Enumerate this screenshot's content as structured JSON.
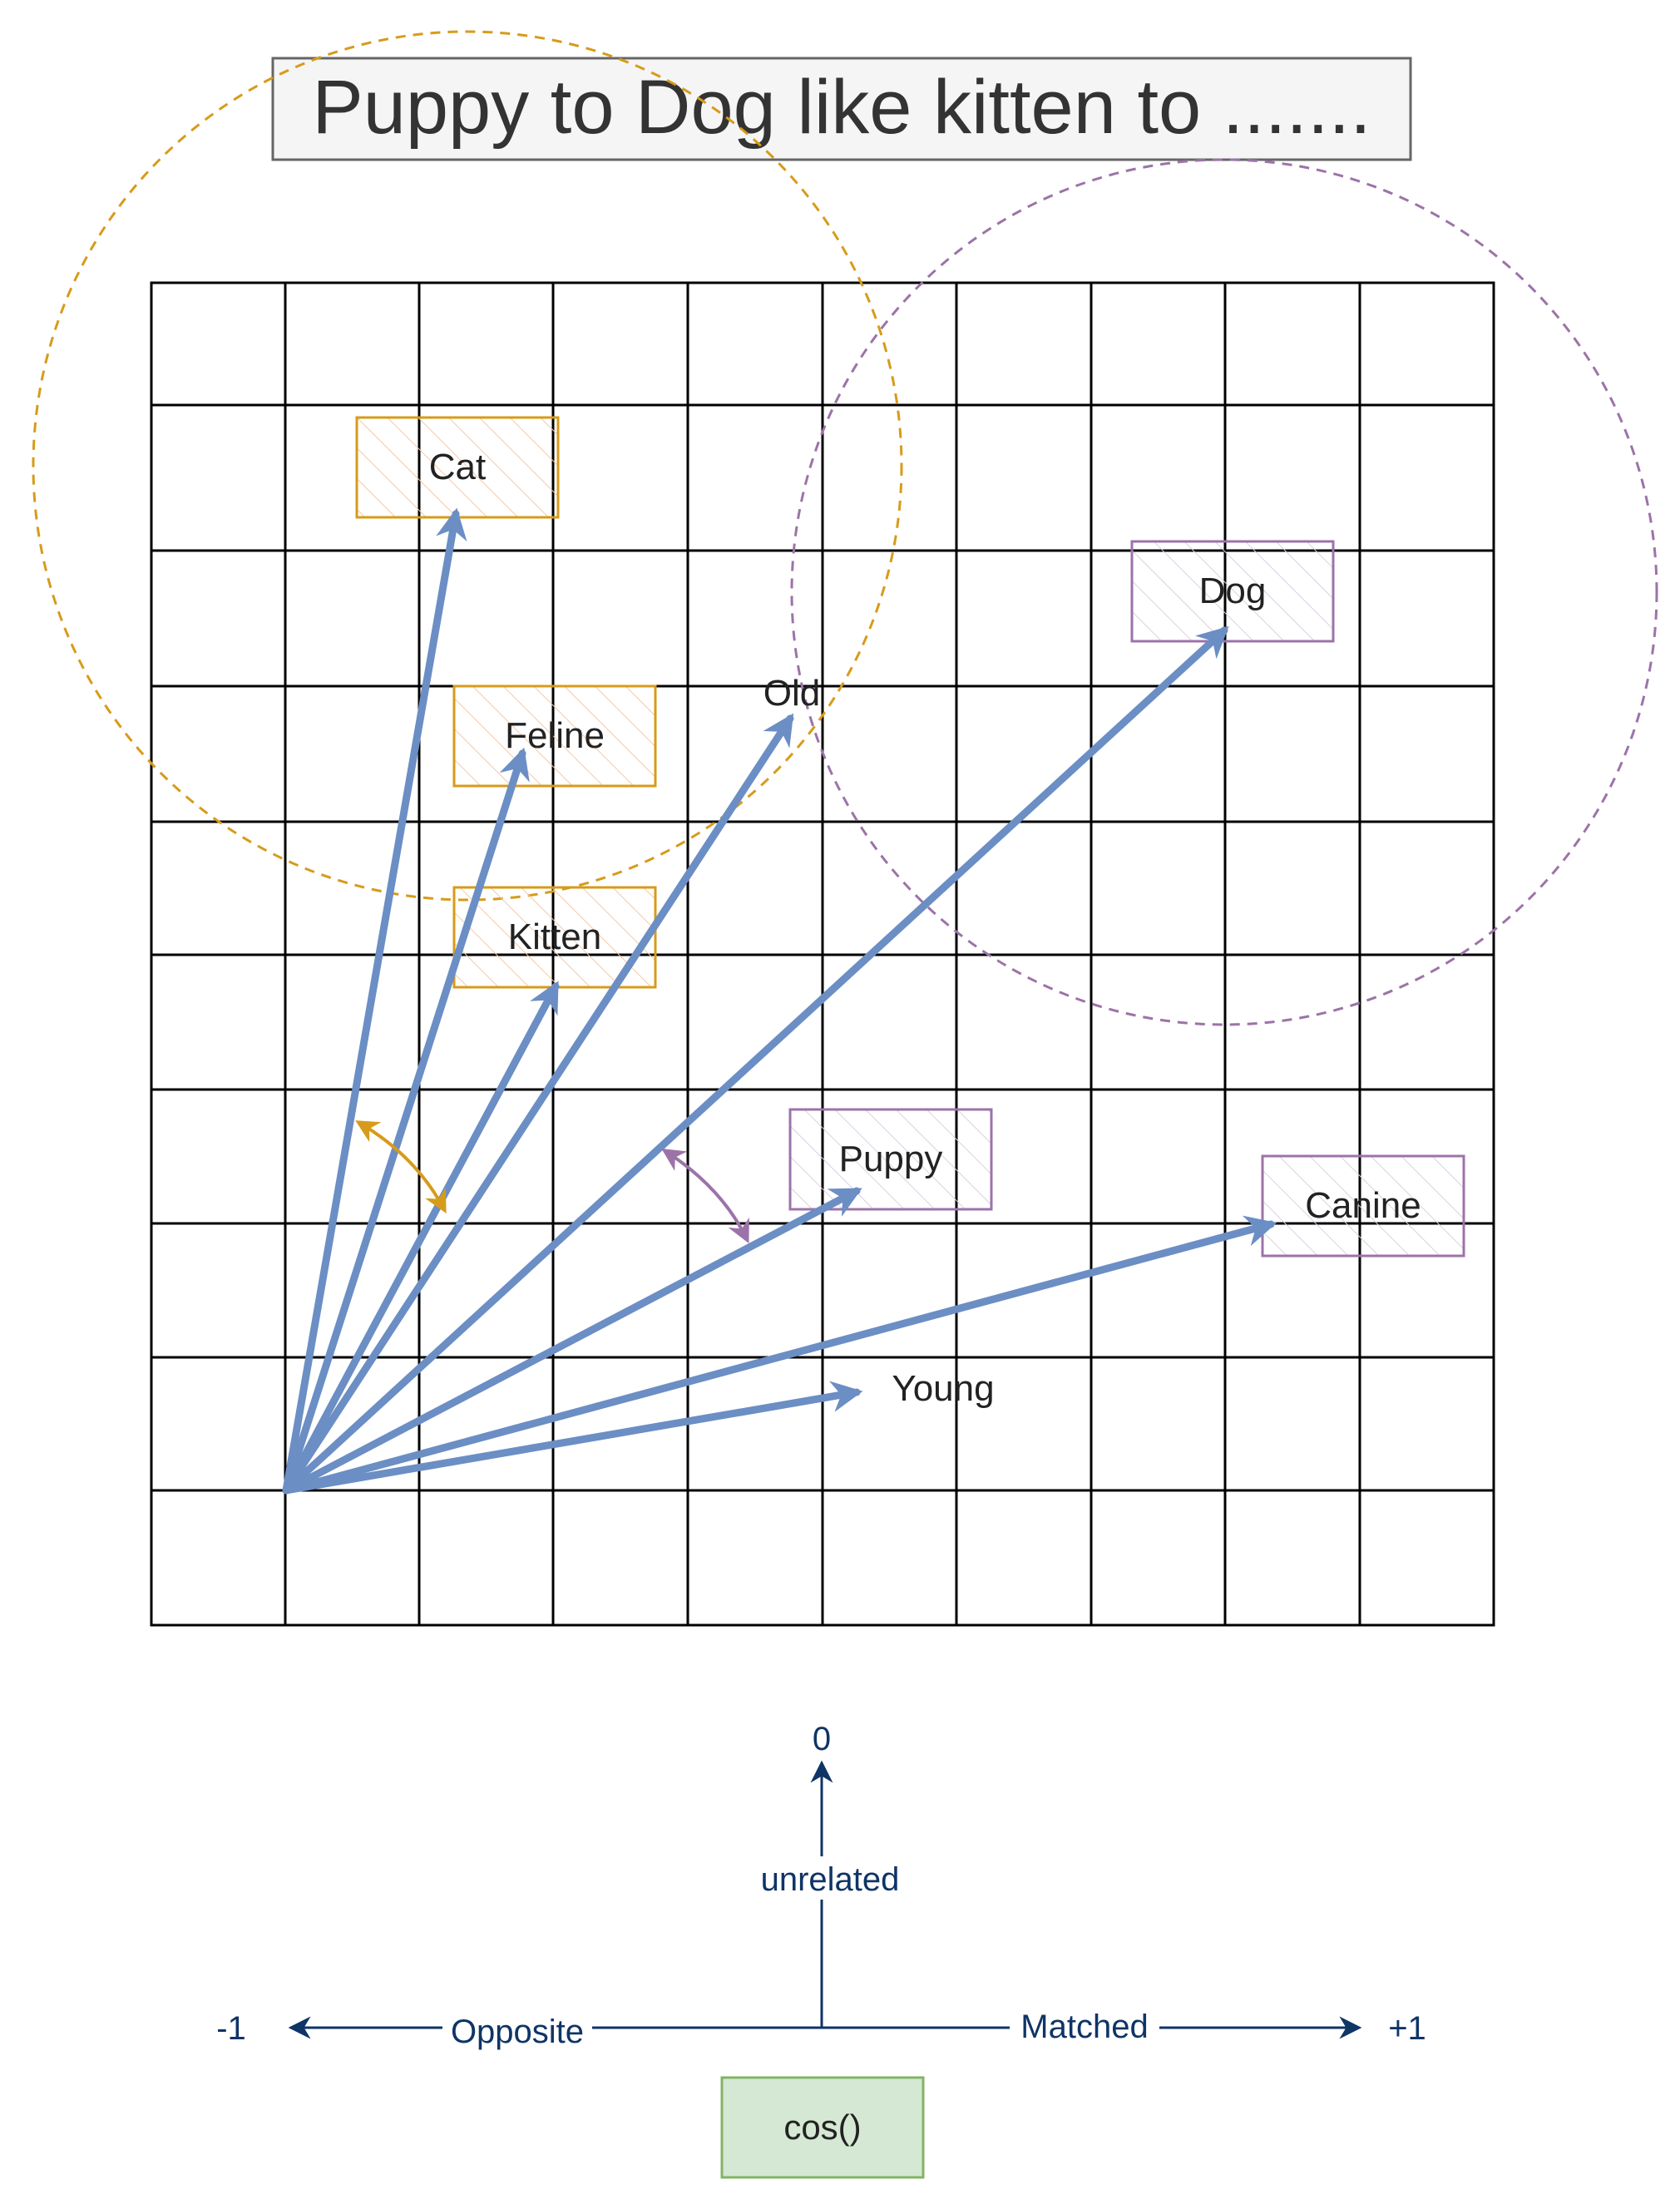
{
  "title": "Puppy to Dog like kitten to .......",
  "colors": {
    "vector": "#6b8ec4",
    "feline_group": "#d79b1a",
    "canine_group": "#9c73a8",
    "axis": "#0f3466",
    "grid": "#000000",
    "cos_fill": "#d5e8d4",
    "cos_stroke": "#82b366"
  },
  "words": {
    "cat": "Cat",
    "feline": "Feline",
    "kitten": "Kitten",
    "old": "Old",
    "dog": "Dog",
    "puppy": "Puppy",
    "canine": "Canine",
    "young": "Young"
  },
  "axis": {
    "top_value": "0",
    "top_label": "unrelated",
    "left_value": "-1",
    "left_label": "Opposite",
    "right_label": "Matched",
    "right_value": "+1"
  },
  "function_label": "cos()"
}
